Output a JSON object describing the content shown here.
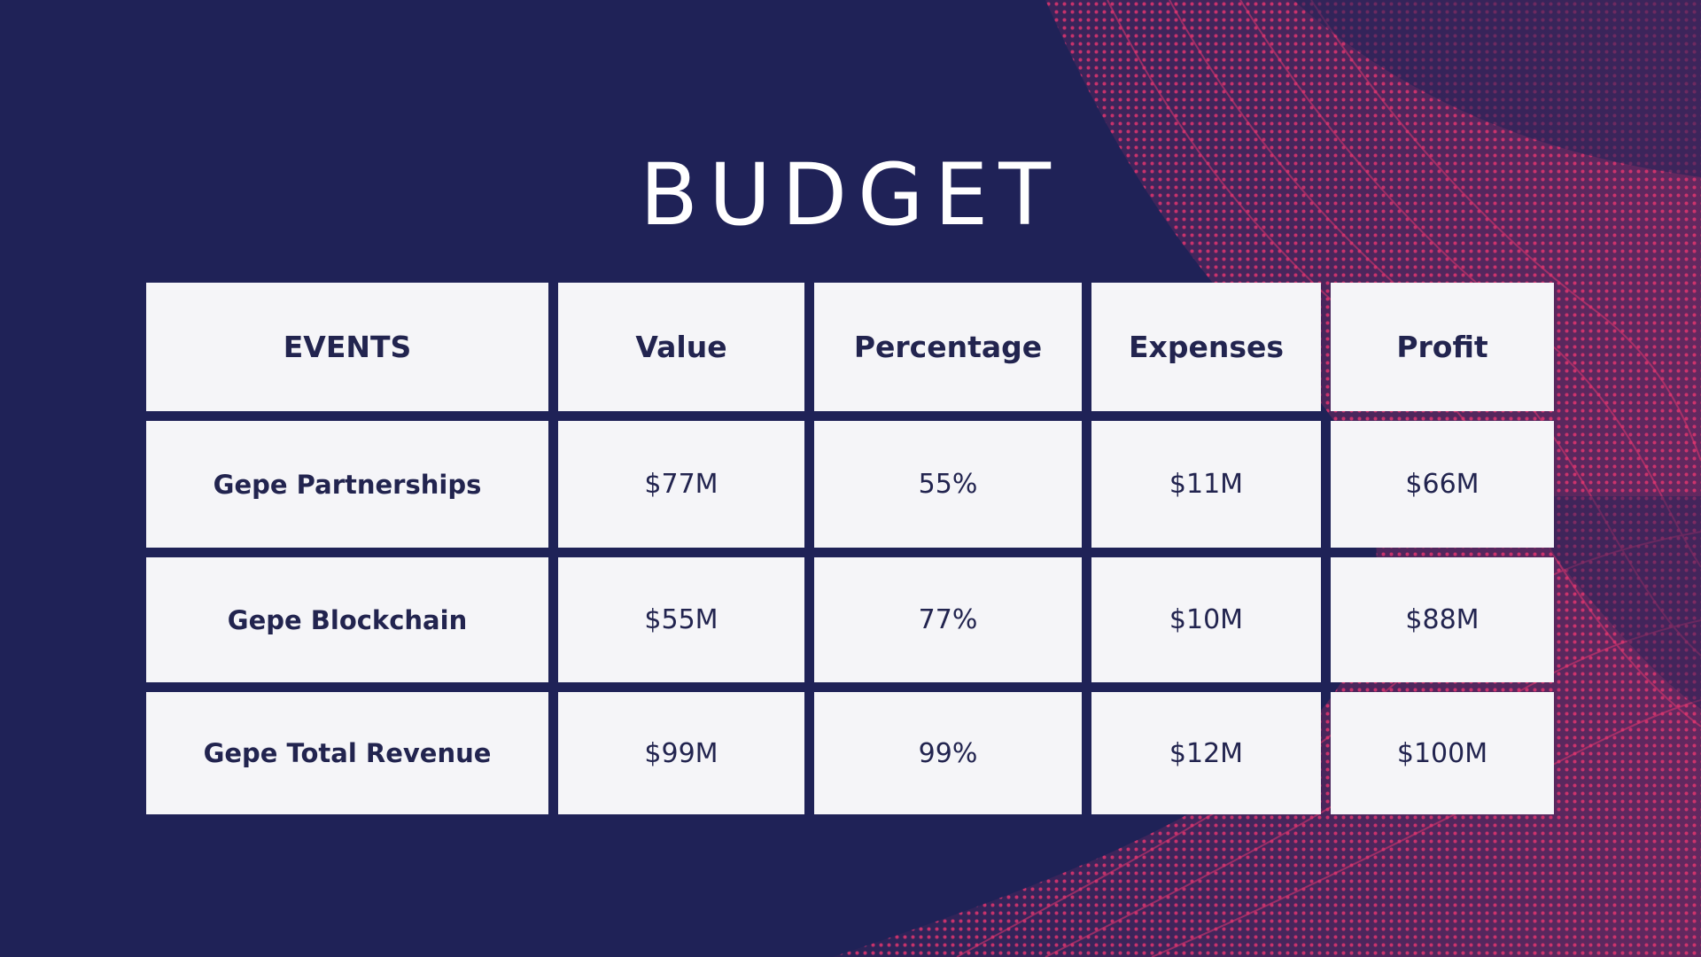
{
  "slide": {
    "title": "BUDGET",
    "colors": {
      "background": "#1f2257",
      "accent": "#e0356f",
      "cell": "#f5f5f8",
      "text": "#22244f"
    }
  },
  "table": {
    "headers": [
      "EVENTS",
      "Value",
      "Percentage",
      "Expenses",
      "Profit"
    ],
    "rows": [
      [
        "Gepe Partnerships",
        "$77M",
        "55%",
        "$11M",
        "$66M"
      ],
      [
        "Gepe Blockchain",
        "$55M",
        "77%",
        "$10M",
        "$88M"
      ],
      [
        "Gepe Total Revenue",
        "$99M",
        "99%",
        "$12M",
        "$100M"
      ]
    ]
  }
}
